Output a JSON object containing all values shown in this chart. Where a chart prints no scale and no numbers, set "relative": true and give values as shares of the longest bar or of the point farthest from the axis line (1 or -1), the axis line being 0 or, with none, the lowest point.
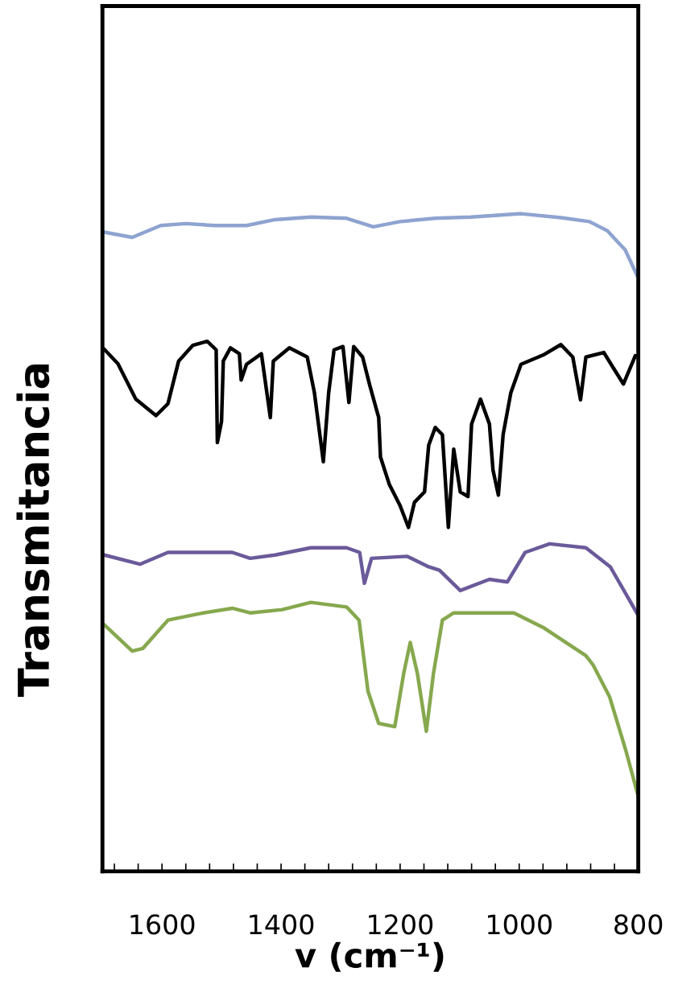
{
  "chart_data": {
    "type": "line",
    "xlabel": "v (cm⁻¹)",
    "ylabel": "Transmitancia",
    "relative": true,
    "xlim": [
      1700,
      800
    ],
    "xticks": [
      {
        "value": 1680,
        "label": null
      },
      {
        "value": 1640,
        "label": null
      },
      1600,
      {
        "value": 1560,
        "label": null
      },
      {
        "value": 1520,
        "label": null
      },
      {
        "value": 1480,
        "label": null
      },
      {
        "value": 1440,
        "label": null
      },
      1400,
      {
        "value": 1360,
        "label": null
      },
      {
        "value": 1320,
        "label": null
      },
      {
        "value": 1280,
        "label": null
      },
      {
        "value": 1240,
        "label": null
      },
      1200,
      {
        "value": 1160,
        "label": null
      },
      {
        "value": 1120,
        "label": null
      },
      {
        "value": 1080,
        "label": null
      },
      {
        "value": 1040,
        "label": null
      },
      1000,
      {
        "value": 960,
        "label": null
      },
      {
        "value": 920,
        "label": null
      },
      {
        "value": 880,
        "label": null
      },
      {
        "value": 840,
        "label": null
      },
      800
    ],
    "series": [
      {
        "color": "#8ea3d0",
        "x": [
          1697,
          1650,
          1602,
          1560,
          1512,
          1458,
          1410,
          1350,
          1290,
          1245,
          1200,
          1141,
          1081,
          997,
          930,
          882,
          852,
          822,
          800
        ],
        "values": [
          0.972,
          0.964,
          0.982,
          0.985,
          0.982,
          0.982,
          0.991,
          0.995,
          0.993,
          0.98,
          0.988,
          0.993,
          0.995,
          1.0,
          0.994,
          0.988,
          0.974,
          0.945,
          0.902
        ]
      },
      {
        "color": "#000000",
        "x": [
          1697,
          1674,
          1644,
          1610,
          1590,
          1572,
          1548,
          1524,
          1509,
          1507,
          1500,
          1497,
          1485,
          1470,
          1467,
          1458,
          1433,
          1418,
          1413,
          1386,
          1356,
          1344,
          1329,
          1320,
          1311,
          1296,
          1286,
          1278,
          1263,
          1251,
          1236,
          1233,
          1218,
          1200,
          1186,
          1176,
          1159,
          1152,
          1141,
          1129,
          1119,
          1110,
          1099,
          1086,
          1080,
          1065,
          1050,
          1044,
          1035,
          1027,
          1014,
          997,
          960,
          930,
          910,
          897,
          888,
          858,
          825,
          805
        ],
        "values": [
          0.794,
          0.772,
          0.718,
          0.693,
          0.711,
          0.776,
          0.8,
          0.806,
          0.793,
          0.652,
          0.684,
          0.776,
          0.796,
          0.787,
          0.747,
          0.771,
          0.787,
          0.69,
          0.776,
          0.796,
          0.782,
          0.728,
          0.623,
          0.728,
          0.793,
          0.798,
          0.713,
          0.798,
          0.782,
          0.739,
          0.69,
          0.63,
          0.588,
          0.556,
          0.523,
          0.561,
          0.577,
          0.648,
          0.675,
          0.664,
          0.523,
          0.642,
          0.577,
          0.57,
          0.68,
          0.718,
          0.68,
          0.61,
          0.572,
          0.664,
          0.728,
          0.771,
          0.785,
          0.801,
          0.782,
          0.717,
          0.782,
          0.789,
          0.741,
          0.784
        ]
      },
      {
        "color": "#6b5a9a",
        "x": [
          1697,
          1637,
          1590,
          1530,
          1482,
          1452,
          1410,
          1350,
          1290,
          1268,
          1260,
          1248,
          1188,
          1152,
          1134,
          1099,
          1050,
          1020,
          990,
          949,
          888,
          847,
          800
        ],
        "values": [
          0.481,
          0.467,
          0.485,
          0.485,
          0.485,
          0.476,
          0.481,
          0.492,
          0.492,
          0.485,
          0.438,
          0.476,
          0.479,
          0.463,
          0.458,
          0.427,
          0.444,
          0.44,
          0.485,
          0.498,
          0.492,
          0.463,
          0.389
        ]
      },
      {
        "color": "#86a84e",
        "x": [
          1697,
          1650,
          1632,
          1590,
          1530,
          1482,
          1452,
          1398,
          1350,
          1290,
          1269,
          1254,
          1236,
          1209,
          1194,
          1183,
          1171,
          1156,
          1144,
          1129,
          1110,
          1009,
          960,
          888,
          876,
          848,
          821,
          800
        ],
        "values": [
          0.375,
          0.335,
          0.339,
          0.382,
          0.393,
          0.4,
          0.393,
          0.398,
          0.409,
          0.402,
          0.382,
          0.274,
          0.225,
          0.22,
          0.301,
          0.348,
          0.301,
          0.213,
          0.301,
          0.382,
          0.393,
          0.393,
          0.371,
          0.328,
          0.314,
          0.265,
          0.184,
          0.114
        ]
      }
    ]
  }
}
